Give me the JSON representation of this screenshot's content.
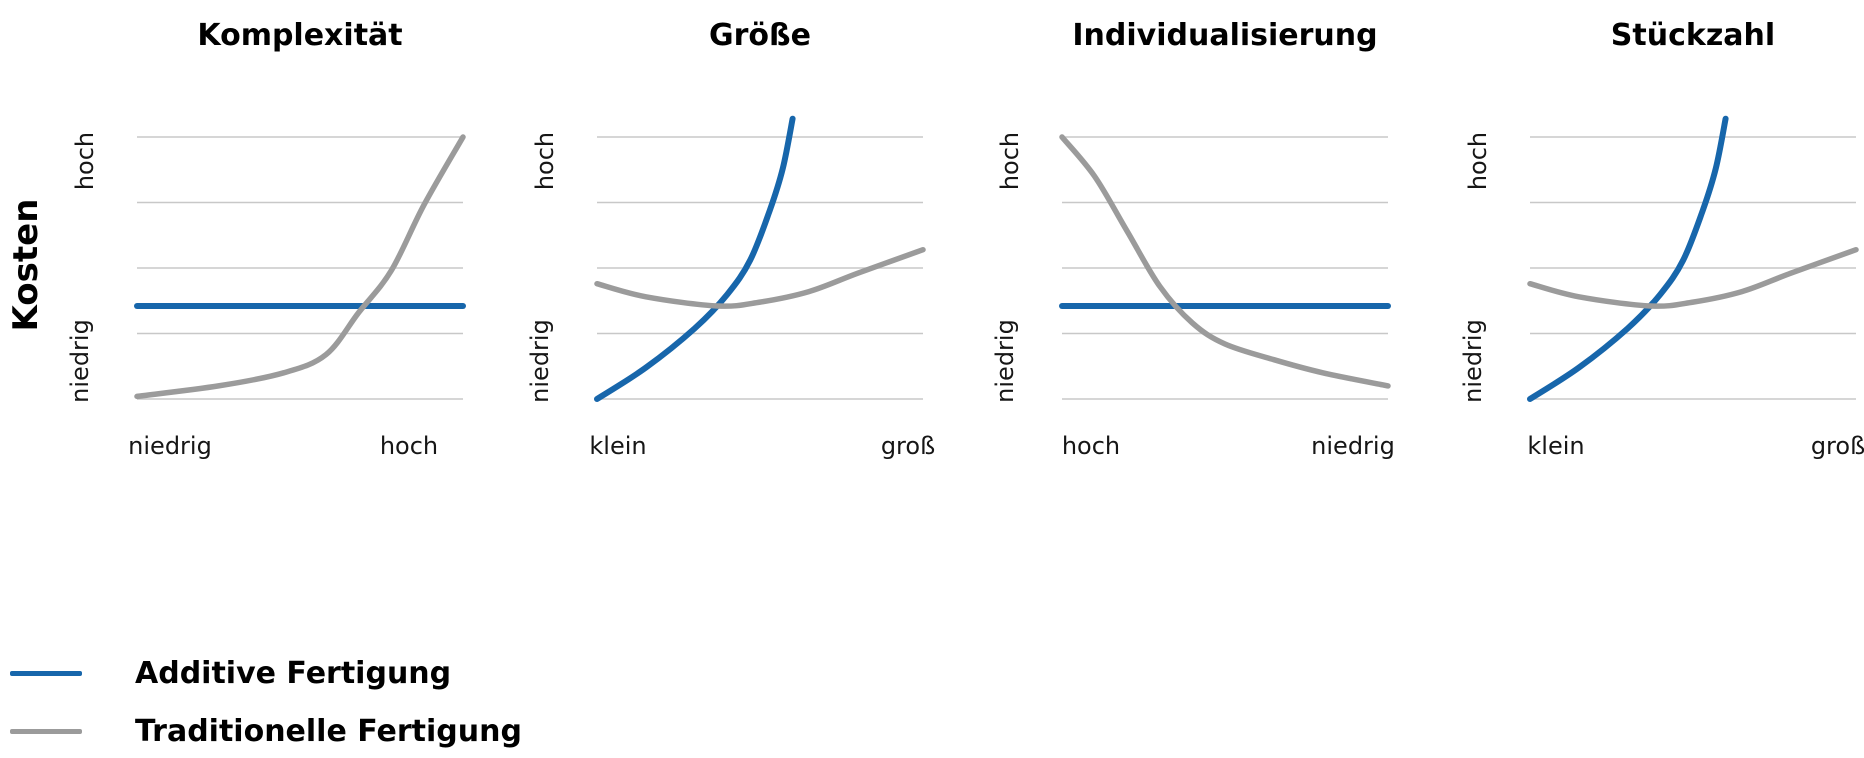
{
  "figure": {
    "y_axis_label": "Kosten",
    "background": "#ffffff"
  },
  "colors": {
    "additive": "#1766ab",
    "traditional": "#9b9b9b",
    "gridline": "#c8c8c8",
    "title_text": "#000000",
    "tick_text": "#161616"
  },
  "legend": {
    "items": [
      {
        "label": "Additive Fertigung",
        "color_key": "additive"
      },
      {
        "label": "Traditionelle Fertigung",
        "color_key": "traditional"
      }
    ]
  },
  "charts": [
    {
      "title": "Komplexität",
      "x_left": "niedrig",
      "x_right": "hoch",
      "y_top": "hoch",
      "y_bottom": "niedrig"
    },
    {
      "title": "Größe",
      "x_left": "klein",
      "x_right": "groß",
      "y_top": "hoch",
      "y_bottom": "niedrig"
    },
    {
      "title": "Individualisierung",
      "x_left": "hoch",
      "x_right": "niedrig",
      "y_top": "hoch",
      "y_bottom": "niedrig"
    },
    {
      "title": "Stückzahl",
      "x_left": "klein",
      "x_right": "groß",
      "y_top": "hoch",
      "y_bottom": "niedrig"
    }
  ],
  "chart_data": [
    {
      "type": "line",
      "title": "Komplexität",
      "xlabel": "Komplexität (niedrig → hoch)",
      "ylabel": "Kosten (niedrig → hoch)",
      "x_range": [
        0,
        1
      ],
      "y_range": [
        0,
        1
      ],
      "grid": true,
      "gridline_count": 5,
      "legend_position": "bottom-left",
      "series": [
        {
          "name": "Additive Fertigung",
          "color_key": "additive",
          "trend": "constant",
          "points": [
            [
              0,
              0.355
            ],
            [
              1,
              0.355
            ]
          ]
        },
        {
          "name": "Traditionelle Fertigung",
          "color_key": "traditional",
          "trend": "rising-exponential",
          "points": [
            [
              0,
              0.01
            ],
            [
              0.25,
              0.05
            ],
            [
              0.45,
              0.1
            ],
            [
              0.58,
              0.17
            ],
            [
              0.68,
              0.33
            ],
            [
              0.78,
              0.49
            ],
            [
              0.88,
              0.74
            ],
            [
              1,
              1.0
            ]
          ]
        }
      ]
    },
    {
      "type": "line",
      "title": "Größe",
      "xlabel": "Größe (klein → groß)",
      "ylabel": "Kosten (niedrig → hoch)",
      "x_range": [
        0,
        1
      ],
      "y_range": [
        0,
        1
      ],
      "grid": true,
      "gridline_count": 5,
      "legend_position": "bottom-left",
      "series": [
        {
          "name": "Additive Fertigung",
          "color_key": "additive",
          "trend": "rising-exponential",
          "points": [
            [
              0,
              0.0
            ],
            [
              0.15,
              0.12
            ],
            [
              0.3,
              0.27
            ],
            [
              0.4,
              0.4
            ],
            [
              0.47,
              0.53
            ],
            [
              0.53,
              0.72
            ],
            [
              0.57,
              0.88
            ],
            [
              0.6,
              1.07
            ]
          ]
        },
        {
          "name": "Traditionelle Fertigung",
          "color_key": "traditional",
          "trend": "shallow-u",
          "points": [
            [
              0,
              0.44
            ],
            [
              0.15,
              0.39
            ],
            [
              0.37,
              0.355
            ],
            [
              0.5,
              0.37
            ],
            [
              0.65,
              0.41
            ],
            [
              0.8,
              0.48
            ],
            [
              1,
              0.57
            ]
          ]
        }
      ]
    },
    {
      "type": "line",
      "title": "Individualisierung",
      "xlabel": "Individualisierung (hoch → niedrig)",
      "ylabel": "Kosten (niedrig → hoch)",
      "x_range": [
        0,
        1
      ],
      "y_range": [
        0,
        1
      ],
      "grid": true,
      "gridline_count": 5,
      "legend_position": "bottom-left",
      "series": [
        {
          "name": "Additive Fertigung",
          "color_key": "additive",
          "trend": "constant",
          "points": [
            [
              0,
              0.355
            ],
            [
              1,
              0.355
            ]
          ]
        },
        {
          "name": "Traditionelle Fertigung",
          "color_key": "traditional",
          "trend": "falling-exponential",
          "points": [
            [
              0,
              1.0
            ],
            [
              0.1,
              0.85
            ],
            [
              0.2,
              0.64
            ],
            [
              0.3,
              0.43
            ],
            [
              0.4,
              0.29
            ],
            [
              0.5,
              0.21
            ],
            [
              0.65,
              0.15
            ],
            [
              0.8,
              0.1
            ],
            [
              1,
              0.05
            ]
          ]
        }
      ]
    },
    {
      "type": "line",
      "title": "Stückzahl",
      "xlabel": "Stückzahl (klein → groß)",
      "ylabel": "Kosten (niedrig → hoch)",
      "x_range": [
        0,
        1
      ],
      "y_range": [
        0,
        1
      ],
      "grid": true,
      "gridline_count": 5,
      "legend_position": "bottom-left",
      "series": [
        {
          "name": "Additive Fertigung",
          "color_key": "additive",
          "trend": "rising-exponential",
          "points": [
            [
              0,
              0.0
            ],
            [
              0.15,
              0.12
            ],
            [
              0.3,
              0.27
            ],
            [
              0.4,
              0.4
            ],
            [
              0.47,
              0.53
            ],
            [
              0.53,
              0.72
            ],
            [
              0.57,
              0.88
            ],
            [
              0.6,
              1.07
            ]
          ]
        },
        {
          "name": "Traditionelle Fertigung",
          "color_key": "traditional",
          "trend": "shallow-u",
          "points": [
            [
              0,
              0.44
            ],
            [
              0.15,
              0.39
            ],
            [
              0.37,
              0.355
            ],
            [
              0.5,
              0.37
            ],
            [
              0.65,
              0.41
            ],
            [
              0.8,
              0.48
            ],
            [
              1,
              0.57
            ]
          ]
        }
      ]
    }
  ]
}
